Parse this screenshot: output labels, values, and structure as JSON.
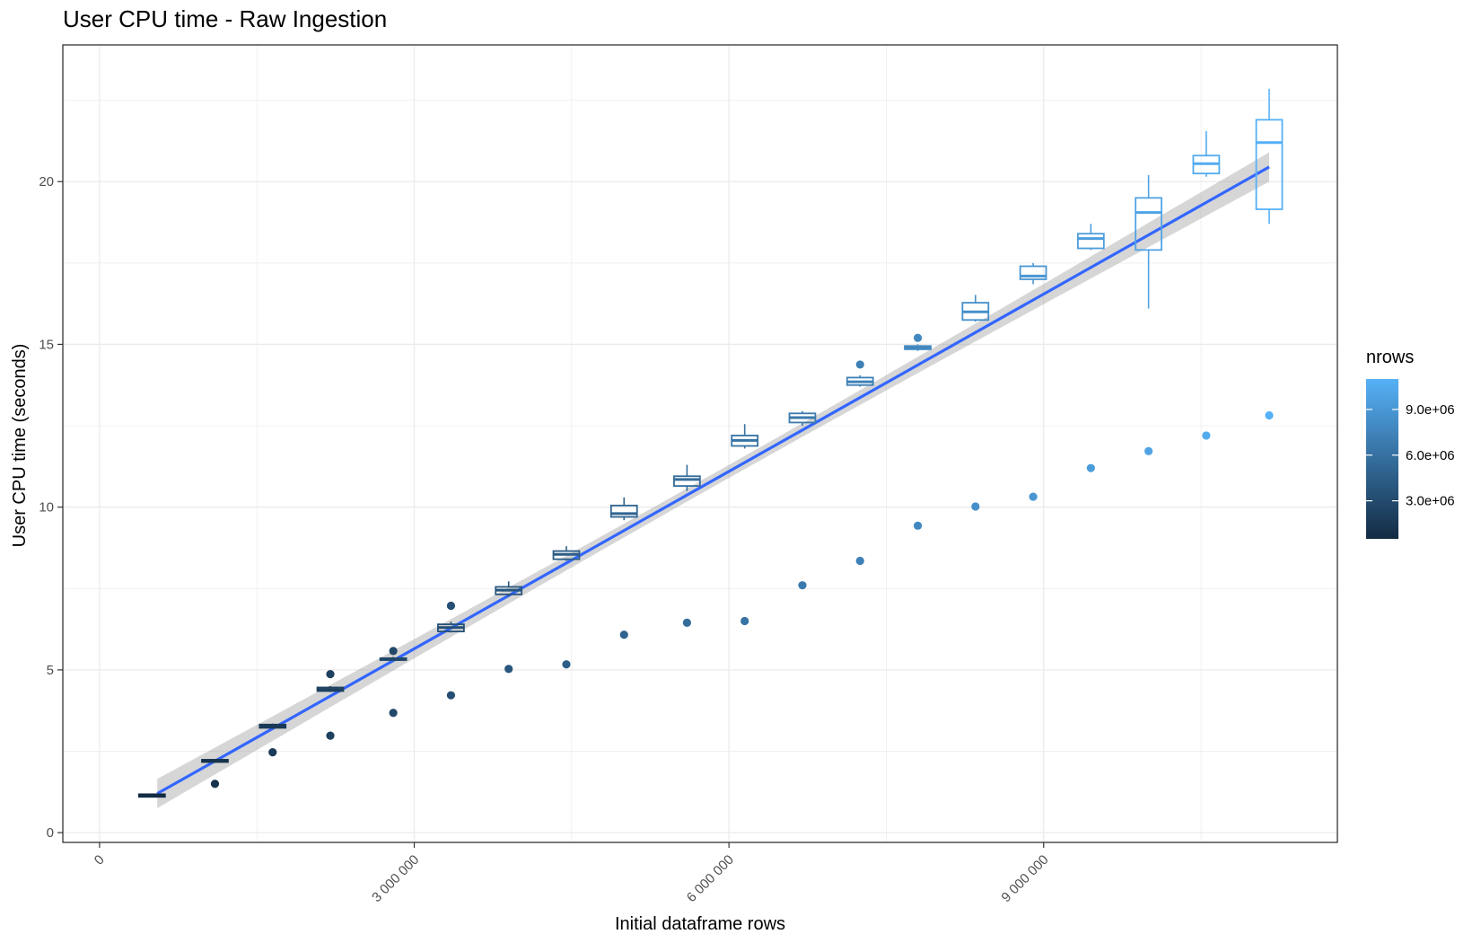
{
  "chart_data": {
    "type": "box",
    "title": "User CPU time - Raw Ingestion",
    "xlabel": "Initial dataframe rows",
    "ylabel": "User CPU time (seconds)",
    "xlim": [
      -350000,
      11800000
    ],
    "ylim": [
      -0.3,
      24.2
    ],
    "x_ticks": [
      0,
      3000000,
      6000000,
      9000000
    ],
    "x_tick_labels": [
      "0",
      "3 000 000",
      "6 000 000",
      "9 000 000"
    ],
    "y_ticks": [
      0,
      5,
      10,
      15,
      20
    ],
    "y_tick_labels": [
      "0",
      "5",
      "10",
      "15",
      "20"
    ],
    "grid": true,
    "legend": {
      "title": "nrows",
      "position": "right",
      "type": "colorbar",
      "range": [
        500000,
        11000000
      ],
      "low_color": "#132B43",
      "high_color": "#56B1F7",
      "breaks": [
        3000000,
        6000000,
        9000000
      ],
      "labels": [
        "3.0e+06",
        "6.0e+06",
        "9.0e+06"
      ]
    },
    "boxes": [
      {
        "x": 500000,
        "min": 1.08,
        "q1": 1.1,
        "median": 1.14,
        "q3": 1.18,
        "max": 1.2
      },
      {
        "x": 1100000,
        "min": 2.15,
        "q1": 2.17,
        "median": 2.21,
        "q3": 2.24,
        "max": 2.26
      },
      {
        "x": 1650000,
        "min": 3.2,
        "q1": 3.22,
        "median": 3.27,
        "q3": 3.32,
        "max": 3.35
      },
      {
        "x": 2200000,
        "min": 4.32,
        "q1": 4.35,
        "median": 4.4,
        "q3": 4.46,
        "max": 4.5
      },
      {
        "x": 2800000,
        "min": 5.28,
        "q1": 5.3,
        "median": 5.33,
        "q3": 5.36,
        "max": 5.4
      },
      {
        "x": 3350000,
        "min": 6.15,
        "q1": 6.18,
        "median": 6.3,
        "q3": 6.4,
        "max": 6.48
      },
      {
        "x": 3900000,
        "min": 7.25,
        "q1": 7.32,
        "median": 7.45,
        "q3": 7.55,
        "max": 7.72
      },
      {
        "x": 4450000,
        "min": 8.35,
        "q1": 8.4,
        "median": 8.55,
        "q3": 8.65,
        "max": 8.8
      },
      {
        "x": 5000000,
        "min": 9.6,
        "q1": 9.7,
        "median": 9.8,
        "q3": 10.05,
        "max": 10.3
      },
      {
        "x": 5600000,
        "min": 10.5,
        "q1": 10.65,
        "median": 10.85,
        "q3": 10.95,
        "max": 11.3
      },
      {
        "x": 6150000,
        "min": 11.8,
        "q1": 11.88,
        "median": 12.05,
        "q3": 12.2,
        "max": 12.55
      },
      {
        "x": 6700000,
        "min": 12.5,
        "q1": 12.6,
        "median": 12.75,
        "q3": 12.88,
        "max": 12.95
      },
      {
        "x": 7250000,
        "min": 13.7,
        "q1": 13.75,
        "median": 13.85,
        "q3": 13.98,
        "max": 14.05
      },
      {
        "x": 7800000,
        "min": 14.8,
        "q1": 14.85,
        "median": 14.9,
        "q3": 14.95,
        "max": 15.0
      },
      {
        "x": 8350000,
        "min": 15.7,
        "q1": 15.75,
        "median": 16.0,
        "q3": 16.28,
        "max": 16.52
      },
      {
        "x": 8900000,
        "min": 16.85,
        "q1": 17.0,
        "median": 17.1,
        "q3": 17.4,
        "max": 17.5
      },
      {
        "x": 9450000,
        "min": 17.9,
        "q1": 17.95,
        "median": 18.25,
        "q3": 18.4,
        "max": 18.7
      },
      {
        "x": 10000000,
        "min": 16.1,
        "q1": 17.9,
        "median": 19.05,
        "q3": 19.5,
        "max": 20.2
      },
      {
        "x": 10550000,
        "min": 20.15,
        "q1": 20.25,
        "median": 20.55,
        "q3": 20.8,
        "max": 21.55
      },
      {
        "x": 11150000,
        "min": 18.7,
        "q1": 19.15,
        "median": 21.2,
        "q3": 21.9,
        "max": 22.85
      }
    ],
    "outliers": [
      {
        "x": 2200000,
        "y": 4.87
      },
      {
        "x": 2800000,
        "y": 5.58
      },
      {
        "x": 3350000,
        "y": 6.97
      },
      {
        "x": 7250000,
        "y": 14.38
      },
      {
        "x": 7800000,
        "y": 15.2
      }
    ],
    "points": [
      {
        "x": 1100000,
        "y": 1.5
      },
      {
        "x": 1650000,
        "y": 2.47
      },
      {
        "x": 2200000,
        "y": 2.98
      },
      {
        "x": 2800000,
        "y": 3.68
      },
      {
        "x": 3350000,
        "y": 4.22
      },
      {
        "x": 3900000,
        "y": 5.03
      },
      {
        "x": 4450000,
        "y": 5.17
      },
      {
        "x": 5000000,
        "y": 6.08
      },
      {
        "x": 5600000,
        "y": 6.45
      },
      {
        "x": 6150000,
        "y": 6.5
      },
      {
        "x": 6700000,
        "y": 7.6
      },
      {
        "x": 7250000,
        "y": 8.35
      },
      {
        "x": 7800000,
        "y": 9.43
      },
      {
        "x": 8350000,
        "y": 10.02
      },
      {
        "x": 8900000,
        "y": 10.32
      },
      {
        "x": 9450000,
        "y": 11.2
      },
      {
        "x": 10000000,
        "y": 11.72
      },
      {
        "x": 10550000,
        "y": 12.2
      },
      {
        "x": 11150000,
        "y": 12.82
      }
    ],
    "trend": {
      "method": "linear",
      "x": [
        550000,
        11150000
      ],
      "y": [
        1.2,
        20.45
      ],
      "color": "#3366FF",
      "ci_halfwidth_ends": 0.45,
      "ci_halfwidth_mid": 0.2
    }
  }
}
